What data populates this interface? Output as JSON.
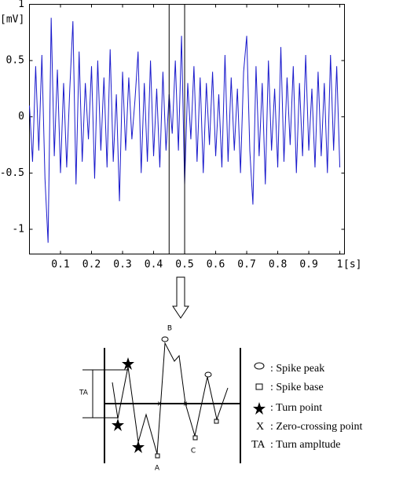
{
  "chart_data": {
    "type": "line",
    "y_label": "[mV]",
    "x_label": "[s]",
    "xlim": [
      0,
      1.015
    ],
    "ylim": [
      -1.22,
      1
    ],
    "xticks": [
      0.1,
      0.2,
      0.3,
      0.4,
      0.5,
      0.6,
      0.7,
      0.8,
      0.9,
      1
    ],
    "yticks": [
      -1,
      -0.5,
      0,
      0.5,
      1
    ],
    "markers": [
      0.45,
      0.5
    ],
    "series": [
      {
        "color": "#1a1acc",
        "x": [
          0,
          0.01,
          0.02,
          0.03,
          0.04,
          0.05,
          0.06,
          0.07,
          0.08,
          0.09,
          0.1,
          0.11,
          0.12,
          0.13,
          0.14,
          0.15,
          0.16,
          0.17,
          0.18,
          0.19,
          0.2,
          0.21,
          0.22,
          0.23,
          0.24,
          0.25,
          0.26,
          0.27,
          0.28,
          0.29,
          0.3,
          0.31,
          0.32,
          0.33,
          0.34,
          0.35,
          0.36,
          0.37,
          0.38,
          0.39,
          0.4,
          0.41,
          0.42,
          0.43,
          0.44,
          0.45,
          0.46,
          0.47,
          0.48,
          0.49,
          0.5,
          0.51,
          0.52,
          0.53,
          0.54,
          0.55,
          0.56,
          0.57,
          0.58,
          0.59,
          0.6,
          0.61,
          0.62,
          0.63,
          0.64,
          0.65,
          0.66,
          0.67,
          0.68,
          0.69,
          0.7,
          0.71,
          0.72,
          0.73,
          0.74,
          0.75,
          0.76,
          0.77,
          0.78,
          0.79,
          0.8,
          0.81,
          0.82,
          0.83,
          0.84,
          0.85,
          0.86,
          0.87,
          0.88,
          0.89,
          0.9,
          0.91,
          0.92,
          0.93,
          0.94,
          0.95,
          0.96,
          0.97,
          0.98,
          0.99,
          1
        ],
        "values": [
          0.1,
          -0.4,
          0.45,
          -0.3,
          0.55,
          -0.55,
          -1.12,
          0.88,
          -0.35,
          0.42,
          -0.5,
          0.3,
          -0.45,
          0.25,
          0.85,
          -0.6,
          0.58,
          -0.4,
          0.3,
          -0.2,
          0.45,
          -0.55,
          0.5,
          -0.3,
          0.35,
          -0.45,
          0.6,
          -0.4,
          0.2,
          -0.75,
          0.4,
          -0.3,
          0.35,
          -0.2,
          0.15,
          0.58,
          -0.5,
          0.3,
          -0.4,
          0.5,
          -0.35,
          0.25,
          -0.45,
          0.4,
          -0.3,
          0.2,
          -0.15,
          0.5,
          -0.3,
          0.72,
          -0.6,
          0.3,
          -0.2,
          0.45,
          -0.4,
          0.35,
          -0.5,
          0.3,
          -0.25,
          0.4,
          -0.35,
          0.2,
          -0.45,
          0.55,
          -0.4,
          0.35,
          -0.3,
          0.25,
          -0.5,
          0.4,
          0.72,
          -0.3,
          -0.78,
          0.45,
          -0.35,
          0.3,
          -0.6,
          0.5,
          -0.3,
          0.25,
          -0.45,
          0.62,
          -0.4,
          0.35,
          -0.25,
          0.45,
          -0.5,
          0.3,
          -0.35,
          0.55,
          -0.3,
          0.25,
          -0.45,
          0.4,
          -0.35,
          0.3,
          -0.5,
          0.55,
          -0.3,
          0.45,
          -0.45
        ]
      }
    ]
  },
  "diagram": {
    "point_labels": [
      "B",
      "A",
      "C"
    ],
    "amplitude_label": "TA",
    "legend": [
      {
        "label": ": Spike peak"
      },
      {
        "label": ": Spike base"
      },
      {
        "label": ": Turn point"
      },
      {
        "symbol": "X",
        "label": ": Zero-crossing point"
      },
      {
        "symbol": "TA",
        "label": ": Turn ampltude"
      }
    ]
  }
}
